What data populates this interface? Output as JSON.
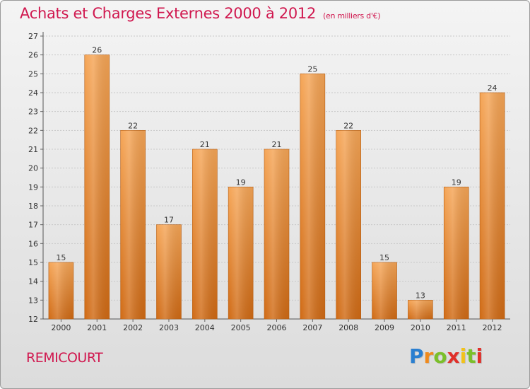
{
  "header": {
    "title": "Achats et Charges Externes 2000 à 2012",
    "subtitle": "(en milliers d'€)"
  },
  "footer": {
    "place": "REMICOURT",
    "logo": "Proxiti"
  },
  "colors": {
    "title": "#d0184f",
    "bar_light": "#f5a556",
    "bar_dark": "#d06a14",
    "background_top": "#f4f4f4",
    "background_bottom": "#dcdcdc"
  },
  "chart_data": {
    "type": "bar",
    "title": "Achats et Charges Externes 2000 à 2012",
    "subtitle": "(en milliers d'€)",
    "categories": [
      "2000",
      "2001",
      "2002",
      "2003",
      "2004",
      "2005",
      "2006",
      "2007",
      "2008",
      "2009",
      "2010",
      "2011",
      "2012"
    ],
    "values": [
      15,
      26,
      22,
      17,
      21,
      19,
      21,
      25,
      22,
      15,
      13,
      19,
      24
    ],
    "ylim": [
      12,
      27
    ],
    "yticks": [
      12,
      13,
      14,
      15,
      16,
      17,
      18,
      19,
      20,
      21,
      22,
      23,
      24,
      25,
      26,
      27
    ],
    "xlabel": "",
    "ylabel": "",
    "grid": true,
    "data_labels": true
  }
}
